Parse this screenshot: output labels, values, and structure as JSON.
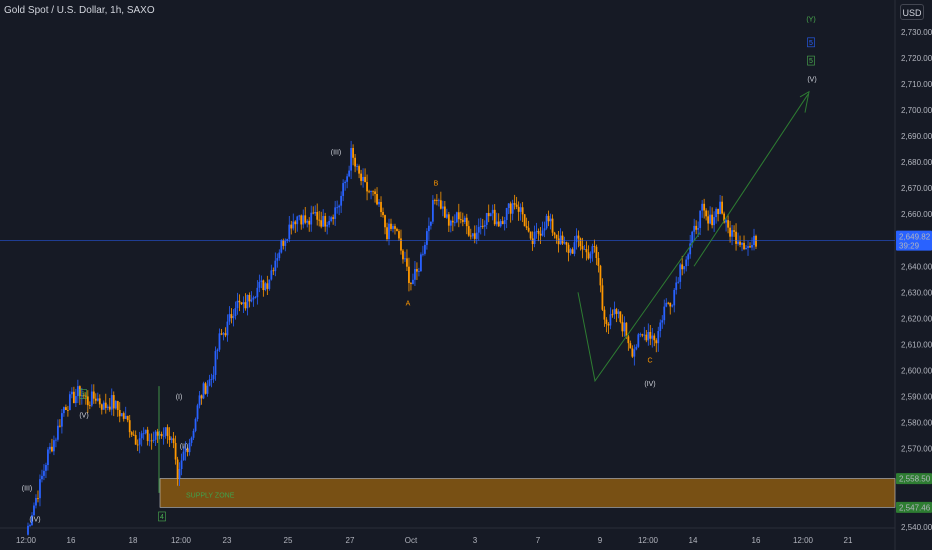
{
  "chart_data": {
    "type": "candlestick",
    "title": "Gold Spot / U.S. Dollar, 1h, SAXO",
    "currency": "USD",
    "ylim": [
      2537,
      2737
    ],
    "y_ticks": [
      "2,540.00",
      "2,550.00",
      "2,560.00",
      "2,570.00",
      "2,580.00",
      "2,590.00",
      "2,600.00",
      "2,610.00",
      "2,620.00",
      "2,630.00",
      "2,640.00",
      "2,650.00",
      "2,660.00",
      "2,670.00",
      "2,680.00",
      "2,690.00",
      "2,700.00",
      "2,710.00",
      "2,720.00",
      "2,730.00"
    ],
    "x_ticks": [
      "12:00",
      "16",
      "18",
      "12:00",
      "23",
      "25",
      "27",
      "Oct",
      "3",
      "7",
      "9",
      "12:00",
      "14",
      "16",
      "12:00",
      "21"
    ],
    "last_price": "2,649.82",
    "countdown": "39:29",
    "zone_prices": [
      "2,558.50",
      "2,547.46"
    ],
    "zone_label": "SUPPLY ZONE",
    "grid": false,
    "colors": {
      "up": "#2962ff",
      "down": "#ff9800",
      "zone": "#8a5a12",
      "projection": "#2e7d32",
      "price_line": "#2962ff",
      "wave_orange": "#ff9800",
      "wave_green": "#4caf50"
    },
    "waves": [
      {
        "text": "(III)",
        "color": "white"
      },
      {
        "text": "(IV)",
        "color": "white"
      },
      {
        "text": "3",
        "color": "green",
        "boxed": true
      },
      {
        "text": "(V)",
        "color": "white"
      },
      {
        "text": "4",
        "color": "green",
        "boxed": true
      },
      {
        "text": "(I)",
        "color": "white"
      },
      {
        "text": "(II)",
        "color": "white"
      },
      {
        "text": "(III)",
        "color": "white"
      },
      {
        "text": "B",
        "color": "orange"
      },
      {
        "text": "A",
        "color": "orange"
      },
      {
        "text": "C",
        "color": "orange"
      },
      {
        "text": "(IV)",
        "color": "white"
      },
      {
        "text": "(Y)",
        "color": "green"
      },
      {
        "text": "5",
        "color": "blue",
        "boxed": true
      },
      {
        "text": "5",
        "color": "green",
        "boxed": true
      },
      {
        "text": "(V)",
        "color": "white"
      }
    ],
    "path": [
      [
        0,
        2537
      ],
      [
        3,
        2546
      ],
      [
        7,
        2556
      ],
      [
        11,
        2568
      ],
      [
        15,
        2575
      ],
      [
        19,
        2586
      ],
      [
        23,
        2589
      ],
      [
        27,
        2592
      ],
      [
        31,
        2588
      ],
      [
        35,
        2590
      ],
      [
        39,
        2586
      ],
      [
        43,
        2588
      ],
      [
        47,
        2584
      ],
      [
        51,
        2580
      ],
      [
        55,
        2574
      ],
      [
        59,
        2575
      ],
      [
        63,
        2573
      ],
      [
        67,
        2576
      ],
      [
        71,
        2577
      ],
      [
        74,
        2570
      ],
      [
        76,
        2556
      ],
      [
        79,
        2568
      ],
      [
        83,
        2575
      ],
      [
        87,
        2589
      ],
      [
        90,
        2594
      ],
      [
        93,
        2597
      ],
      [
        97,
        2612
      ],
      [
        101,
        2617
      ],
      [
        105,
        2626
      ],
      [
        109,
        2624
      ],
      [
        113,
        2630
      ],
      [
        117,
        2632
      ],
      [
        121,
        2634
      ],
      [
        125,
        2643
      ],
      [
        129,
        2650
      ],
      [
        133,
        2657
      ],
      [
        137,
        2660
      ],
      [
        141,
        2656
      ],
      [
        145,
        2660
      ],
      [
        149,
        2657
      ],
      [
        153,
        2660
      ],
      [
        157,
        2664
      ],
      [
        161,
        2675
      ],
      [
        163,
        2683
      ],
      [
        166,
        2676
      ],
      [
        170,
        2670
      ],
      [
        174,
        2667
      ],
      [
        178,
        2660
      ],
      [
        181,
        2653
      ],
      [
        185,
        2655
      ],
      [
        189,
        2643
      ],
      [
        193,
        2634
      ],
      [
        196,
        2637
      ],
      [
        200,
        2650
      ],
      [
        203,
        2660
      ],
      [
        206,
        2668
      ],
      [
        209,
        2662
      ],
      [
        213,
        2655
      ],
      [
        217,
        2660
      ],
      [
        221,
        2655
      ],
      [
        225,
        2652
      ],
      [
        229,
        2658
      ],
      [
        233,
        2660
      ],
      [
        237,
        2657
      ],
      [
        241,
        2661
      ],
      [
        245,
        2665
      ],
      [
        249,
        2660
      ],
      [
        253,
        2648
      ],
      [
        257,
        2653
      ],
      [
        261,
        2658
      ],
      [
        265,
        2653
      ],
      [
        269,
        2648
      ],
      [
        273,
        2646
      ],
      [
        277,
        2650
      ],
      [
        281,
        2645
      ],
      [
        285,
        2646
      ],
      [
        287,
        2640
      ],
      [
        289,
        2624
      ],
      [
        292,
        2618
      ],
      [
        296,
        2622
      ],
      [
        300,
        2616
      ],
      [
        304,
        2608
      ],
      [
        308,
        2612
      ],
      [
        312,
        2615
      ],
      [
        316,
        2612
      ],
      [
        320,
        2624
      ],
      [
        324,
        2628
      ],
      [
        328,
        2640
      ],
      [
        332,
        2645
      ],
      [
        336,
        2656
      ],
      [
        339,
        2661
      ],
      [
        342,
        2656
      ],
      [
        345,
        2660
      ],
      [
        348,
        2664
      ],
      [
        351,
        2655
      ],
      [
        355,
        2652
      ],
      [
        359,
        2650
      ],
      [
        363,
        2647
      ],
      [
        366,
        2650
      ]
    ]
  }
}
